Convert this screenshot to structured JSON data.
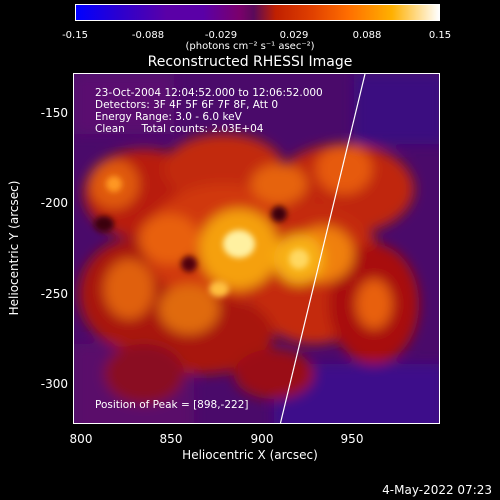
{
  "colorbar": {
    "ticks": [
      "-0.15",
      "-0.088",
      "-0.029",
      "0.029",
      "0.088",
      "0.15"
    ],
    "units": "(photons cm⁻² s⁻¹ asec⁻²)"
  },
  "title": "Reconstructed RHESSI Image",
  "info": {
    "line1": "23-Oct-2004 12:04:52.000 to 12:06:52.000",
    "line2": "Detectors: 3F 4F 5F 6F 7F 8F, Att 0",
    "line3": "Energy Range: 3.0 - 6.0 keV",
    "line4": "Clean     Total counts: 2.03E+04",
    "peak": "Position of Peak = [898,-222]"
  },
  "axes": {
    "xlabel": "Heliocentric X (arcsec)",
    "ylabel": "Heliocentric Y (arcsec)",
    "xticks": [
      "800",
      "850",
      "900",
      "950"
    ],
    "yticks": [
      "-150",
      "-200",
      "-250",
      "-300"
    ],
    "xlim": [
      800,
      990
    ],
    "ylim": [
      -322,
      -140
    ]
  },
  "footer": {
    "date": "4-May-2022 07:23"
  },
  "colors": {
    "background": "#000000",
    "foreground": "#ffffff"
  }
}
